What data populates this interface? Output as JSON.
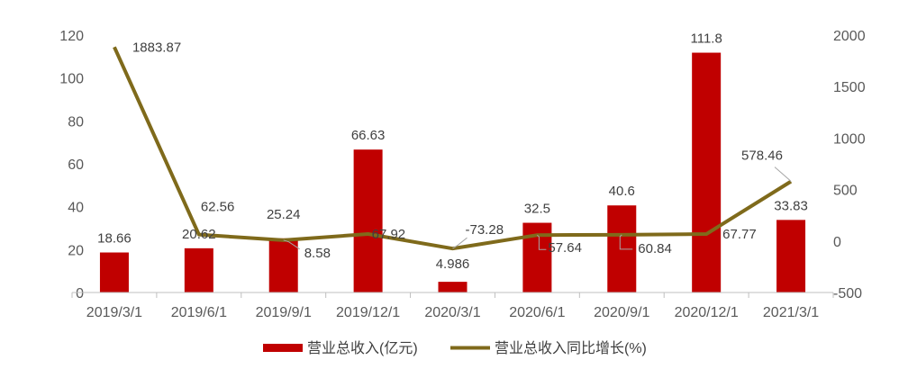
{
  "chart_data": {
    "type": "bar+line",
    "categories": [
      "2019/3/1",
      "2019/6/1",
      "2019/9/1",
      "2019/12/1",
      "2020/3/1",
      "2020/6/1",
      "2020/9/1",
      "2020/12/1",
      "2021/3/1"
    ],
    "series": [
      {
        "name": "营业总收入(亿元)",
        "type": "bar",
        "axis": "left",
        "color": "#C00000",
        "values": [
          18.66,
          20.62,
          25.24,
          66.63,
          4.986,
          32.5,
          40.6,
          111.8,
          33.83
        ],
        "labels": [
          "18.66",
          "20.62",
          "25.24",
          "66.63",
          "4.986",
          "32.5",
          "40.6",
          "111.8",
          "33.83"
        ]
      },
      {
        "name": "营业总收入同比增长(%)",
        "type": "line",
        "axis": "right",
        "color": "#7F6A1B",
        "values": [
          1883.87,
          62.56,
          8.58,
          67.92,
          -73.28,
          57.64,
          60.84,
          67.77,
          578.46
        ],
        "labels": [
          "1883.87",
          "62.56",
          "8.58",
          "67.92",
          "-73.28",
          "57.64",
          "60.84",
          "67.77",
          "578.46"
        ]
      }
    ],
    "y_left": {
      "min": 0,
      "max": 120,
      "ticks": [
        "0",
        "20",
        "40",
        "60",
        "80",
        "100",
        "120"
      ]
    },
    "y_right": {
      "min": -500,
      "max": 2000,
      "ticks": [
        "-500",
        "0",
        "500",
        "1000",
        "1500",
        "2000"
      ]
    },
    "grid": false,
    "legend_position": "bottom"
  }
}
